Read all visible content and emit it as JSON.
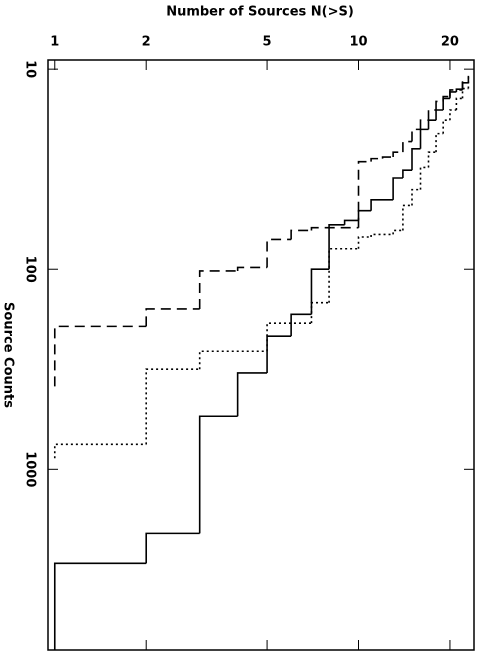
{
  "chart_data": {
    "type": "step",
    "title": "Number of Sources N(>S)",
    "y_label": "Source Counts",
    "x_scale": "log",
    "y_scale": "log",
    "y_inverted": true,
    "xlim": [
      0.95,
      24
    ],
    "ylim": [
      9,
      8000
    ],
    "xticks": [
      1,
      2,
      5,
      10,
      20
    ],
    "yticks": [
      10,
      100,
      1000
    ],
    "series": [
      {
        "color": "#000000",
        "dash": "solid",
        "x": [
          1,
          1,
          2,
          3,
          4,
          5,
          6,
          7,
          8,
          9,
          10,
          11,
          13,
          14,
          15,
          16,
          17,
          18,
          19,
          20,
          21,
          22,
          23
        ],
        "values": [
          8000,
          2950,
          2090,
          543,
          330,
          216,
          168,
          100,
          60,
          57,
          51,
          45,
          35,
          32,
          25,
          20,
          18,
          16,
          14,
          13,
          12.6,
          11.7,
          10.8
        ]
      },
      {
        "color": "#000000",
        "dash": "dashed",
        "x": [
          1,
          1,
          2,
          3,
          4,
          5,
          6,
          7,
          10,
          11,
          12,
          13,
          14,
          15,
          16,
          17,
          18,
          19,
          20,
          22
        ],
        "values": [
          385,
          193,
          158,
          102,
          98,
          71,
          64,
          62,
          29,
          28,
          27.5,
          26,
          23,
          20,
          18,
          16,
          14.5,
          13.7,
          12.7,
          11.5
        ]
      },
      {
        "color": "#000000",
        "dash": "dotted",
        "x": [
          1,
          1,
          2,
          3,
          5,
          7,
          8,
          10,
          11,
          13,
          14,
          15,
          16,
          17,
          18,
          19,
          20,
          21,
          22,
          23
        ],
        "values": [
          880,
          750,
          316,
          257,
          186,
          147,
          79,
          69,
          67,
          64,
          48,
          40,
          31,
          26,
          21,
          18,
          16,
          14,
          12.5,
          11
        ]
      }
    ]
  }
}
